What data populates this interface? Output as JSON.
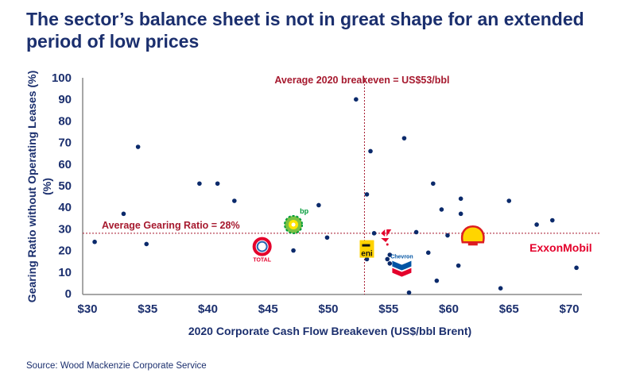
{
  "title": "The sector’s balance sheet is not in great shape for an extended period of low prices",
  "source": "Source: Wood Mackenzie Corporate Service",
  "chart_data": {
    "type": "scatter",
    "title": "The sector’s balance sheet is not in great shape for an extended period of low prices",
    "xlabel": "2020 Corporate Cash Flow Breakeven (US$/bbl Brent)",
    "ylabel": "Gearing Ratio without Operating Leases (%)",
    "xlim": [
      30,
      70
    ],
    "ylim": [
      0,
      100
    ],
    "x_ticks": [
      "$30",
      "$35",
      "$40",
      "$45",
      "$50",
      "$55",
      "$60",
      "$65",
      "$70"
    ],
    "x_tick_values": [
      30,
      35,
      40,
      45,
      50,
      55,
      60,
      65,
      70
    ],
    "y_ticks": [
      "0",
      "10",
      "20",
      "30",
      "40",
      "50",
      "60",
      "70",
      "80",
      "90",
      "100"
    ],
    "y_tick_values": [
      0,
      10,
      20,
      30,
      40,
      50,
      60,
      70,
      80,
      90,
      100
    ],
    "grid": false,
    "point_color": "#0b2a6b",
    "reference_color": "#a6192e",
    "reference_lines": [
      {
        "axis": "x",
        "value": 53,
        "label": "Average 2020 breakeven = US$53/bbl"
      },
      {
        "axis": "y",
        "value": 28,
        "label": "Average Gearing Ratio = 28%"
      }
    ],
    "points": [
      [
        30.6,
        24
      ],
      [
        33.0,
        37
      ],
      [
        34.2,
        68
      ],
      [
        34.9,
        23
      ],
      [
        39.3,
        51
      ],
      [
        40.8,
        51
      ],
      [
        42.2,
        43
      ],
      [
        47.1,
        20
      ],
      [
        49.2,
        41
      ],
      [
        49.9,
        26
      ],
      [
        52.3,
        90
      ],
      [
        56.3,
        72
      ],
      [
        53.5,
        66
      ],
      [
        58.7,
        51
      ],
      [
        53.2,
        46
      ],
      [
        61.0,
        44
      ],
      [
        65.0,
        43
      ],
      [
        59.4,
        39
      ],
      [
        61.0,
        37
      ],
      [
        67.3,
        32
      ],
      [
        68.6,
        34
      ],
      [
        62.3,
        30
      ],
      [
        53.8,
        28
      ],
      [
        57.3,
        28.5
      ],
      [
        59.9,
        27
      ],
      [
        58.3,
        19
      ],
      [
        53.2,
        16
      ],
      [
        55.1,
        18
      ],
      [
        54.9,
        16
      ],
      [
        55.1,
        14
      ],
      [
        60.8,
        13
      ],
      [
        70.6,
        12
      ],
      [
        59.0,
        6
      ],
      [
        64.3,
        2.5
      ],
      [
        56.7,
        0.5
      ]
    ],
    "labeled_points": [
      {
        "name": "TOTAL",
        "x": 44.5,
        "y": 20,
        "logo_color": "#e4002b"
      },
      {
        "name": "bp",
        "x": 47.1,
        "y": 32,
        "logo_color": "#009b3a"
      },
      {
        "name": "eni",
        "x": 53.2,
        "y": 20,
        "logo_color": "#ffd200"
      },
      {
        "name": "Equinor",
        "x": 54.9,
        "y": 25,
        "logo_color": "#e4002b"
      },
      {
        "name": "Chevron",
        "x": 56.1,
        "y": 13,
        "logo_color": "#0054a4"
      },
      {
        "name": "Shell",
        "x": 62.0,
        "y": 26,
        "logo_color": "#ffd500"
      },
      {
        "name": "ExxonMobil",
        "x": 69.3,
        "y": 21,
        "logo_color": "#e4002b"
      }
    ]
  }
}
